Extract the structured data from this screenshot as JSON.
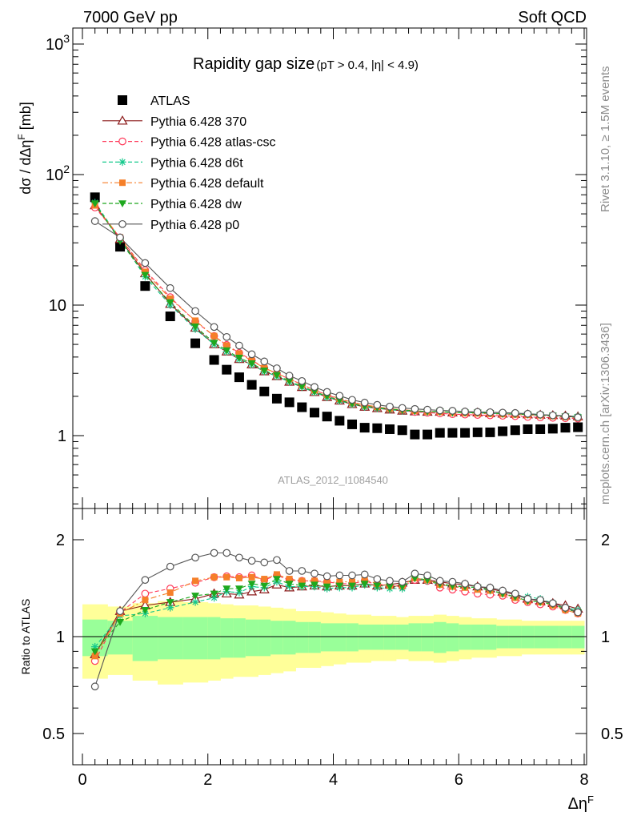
{
  "header": {
    "left": "7000 GeV pp",
    "right": "Soft QCD"
  },
  "title": {
    "main": "Rapidity gap size",
    "cuts": "(pT > 0.4, |η| < 4.9)"
  },
  "analysis_label": "ATLAS_2012_I1084540",
  "side_labels": {
    "rivet": "Rivet 3.1.10, ≥ 1.5M events",
    "mcplots": "mcplots.cern.ch [arXiv:1306.3436]"
  },
  "colors": {
    "ATLAS": "#000000",
    "p370": "#8b1a1a",
    "atlas_csc": "#ff3a5a",
    "d6t": "#14c98c",
    "default": "#f57f29",
    "dw": "#1ea81e",
    "p0": "#555555",
    "band_inner": "#99ff99",
    "band_outer": "#ffff99"
  },
  "chart_data": [
    {
      "type": "scatter",
      "panel": "main",
      "ylabel": "dσ / dΔη^F [mb]",
      "yscale": "log",
      "ylim": [
        0.3,
        1200
      ],
      "xlim": [
        -0.3,
        8.1
      ],
      "yticks": [
        1,
        10,
        100,
        1000
      ],
      "ytick_labels": [
        "1",
        "10",
        "10^2",
        "10^3"
      ],
      "x": [
        0.2,
        0.6,
        1.0,
        1.4,
        1.8,
        2.1,
        2.3,
        2.5,
        2.7,
        2.9,
        3.1,
        3.3,
        3.5,
        3.7,
        3.9,
        4.1,
        4.3,
        4.5,
        4.7,
        4.9,
        5.1,
        5.3,
        5.5,
        5.7,
        5.9,
        6.1,
        6.3,
        6.5,
        6.7,
        6.9,
        7.1,
        7.3,
        7.5,
        7.7,
        7.9
      ],
      "legend_placement": "top-left",
      "series": [
        {
          "name": "ATLAS",
          "key": "ATLAS",
          "marker": "square",
          "line": "none",
          "values": [
            67,
            28,
            14,
            8.2,
            5.1,
            3.8,
            3.2,
            2.8,
            2.45,
            2.18,
            1.92,
            1.8,
            1.65,
            1.5,
            1.4,
            1.3,
            1.22,
            1.15,
            1.14,
            1.12,
            1.1,
            1.02,
            1.02,
            1.05,
            1.05,
            1.05,
            1.06,
            1.06,
            1.08,
            1.1,
            1.12,
            1.12,
            1.13,
            1.15,
            1.16
          ]
        },
        {
          "name": "Pythia 6.428 370",
          "key": "p370",
          "marker": "triangle-open",
          "line": "solid",
          "values": [
            58,
            32,
            17.5,
            10.2,
            6.7,
            5.0,
            4.4,
            3.85,
            3.5,
            3.1,
            2.85,
            2.58,
            2.35,
            2.15,
            1.97,
            1.85,
            1.74,
            1.66,
            1.62,
            1.58,
            1.55,
            1.53,
            1.52,
            1.52,
            1.5,
            1.5,
            1.5,
            1.48,
            1.47,
            1.46,
            1.45,
            1.44,
            1.43,
            1.42,
            1.4
          ]
        },
        {
          "name": "Pythia 6.428 atlas-csc",
          "key": "atlas_csc",
          "marker": "circle-open",
          "line": "dashed",
          "values": [
            56,
            33,
            18.5,
            11.5,
            7.5,
            5.8,
            4.95,
            4.3,
            3.8,
            3.3,
            2.98,
            2.72,
            2.46,
            2.23,
            2.05,
            1.9,
            1.78,
            1.71,
            1.65,
            1.61,
            1.57,
            1.52,
            1.5,
            1.48,
            1.46,
            1.45,
            1.44,
            1.43,
            1.42,
            1.41,
            1.39,
            1.38,
            1.37,
            1.36,
            1.35
          ]
        },
        {
          "name": "Pythia 6.428 d6t",
          "key": "d6t",
          "marker": "star",
          "line": "dashed",
          "values": [
            61,
            32,
            16.5,
            10,
            6.55,
            5.0,
            4.4,
            3.85,
            3.5,
            3.1,
            2.85,
            2.58,
            2.35,
            2.15,
            1.97,
            1.85,
            1.74,
            1.66,
            1.62,
            1.58,
            1.55,
            1.54,
            1.52,
            1.52,
            1.5,
            1.5,
            1.5,
            1.48,
            1.47,
            1.46,
            1.47,
            1.45,
            1.43,
            1.41,
            1.4
          ]
        },
        {
          "name": "Pythia 6.428 default",
          "key": "default",
          "marker": "square-small",
          "line": "dashdot",
          "values": [
            58,
            33,
            18,
            11.2,
            7.6,
            5.8,
            4.9,
            4.25,
            3.75,
            3.3,
            3.0,
            2.72,
            2.46,
            2.23,
            2.06,
            1.92,
            1.8,
            1.72,
            1.66,
            1.61,
            1.58,
            1.55,
            1.53,
            1.52,
            1.5,
            1.49,
            1.48,
            1.47,
            1.46,
            1.45,
            1.44,
            1.43,
            1.41,
            1.39,
            1.37
          ]
        },
        {
          "name": "Pythia 6.428 dw",
          "key": "dw",
          "marker": "triangle-down",
          "line": "dashed",
          "values": [
            60,
            31,
            17,
            10.5,
            6.85,
            5.15,
            4.5,
            3.95,
            3.58,
            3.15,
            2.9,
            2.62,
            2.38,
            2.18,
            2.0,
            1.87,
            1.76,
            1.68,
            1.64,
            1.6,
            1.57,
            1.55,
            1.53,
            1.53,
            1.51,
            1.5,
            1.5,
            1.49,
            1.47,
            1.46,
            1.45,
            1.43,
            1.42,
            1.4,
            1.38
          ]
        },
        {
          "name": "Pythia 6.428 p0",
          "key": "p0",
          "marker": "circle-open",
          "line": "solid",
          "values": [
            44,
            33,
            21,
            13.5,
            9.0,
            6.8,
            5.7,
            4.9,
            4.2,
            3.7,
            3.28,
            2.88,
            2.62,
            2.36,
            2.16,
            2.02,
            1.88,
            1.79,
            1.72,
            1.67,
            1.63,
            1.6,
            1.58,
            1.56,
            1.55,
            1.53,
            1.52,
            1.51,
            1.5,
            1.49,
            1.47,
            1.45,
            1.43,
            1.41,
            1.38
          ]
        }
      ]
    },
    {
      "type": "scatter",
      "panel": "ratio",
      "ylabel": "Ratio to ATLAS",
      "xlabel": "Δη^F",
      "yscale": "log",
      "ylim": [
        0.4,
        2.4
      ],
      "xlim": [
        -0.3,
        8.1
      ],
      "yticks": [
        0.5,
        1,
        2
      ],
      "ytick_labels": [
        "0.5",
        "1",
        "2"
      ],
      "xticks": [
        0,
        2,
        4,
        6,
        8
      ],
      "bands": {
        "x_edges": [
          0.0,
          0.4,
          0.8,
          1.2,
          1.6,
          2.0,
          2.2,
          2.4,
          2.6,
          2.8,
          3.0,
          3.2,
          3.4,
          3.6,
          3.8,
          4.0,
          4.2,
          4.4,
          4.6,
          4.8,
          5.0,
          5.2,
          5.4,
          5.6,
          5.8,
          6.0,
          6.2,
          6.4,
          6.6,
          6.8,
          7.0,
          7.2,
          7.4,
          7.6,
          7.8,
          8.0
        ],
        "inner_half_width": [
          0.13,
          0.12,
          0.16,
          0.15,
          0.15,
          0.15,
          0.14,
          0.14,
          0.13,
          0.13,
          0.12,
          0.12,
          0.11,
          0.11,
          0.1,
          0.1,
          0.1,
          0.09,
          0.09,
          0.09,
          0.09,
          0.1,
          0.1,
          0.11,
          0.1,
          0.09,
          0.09,
          0.09,
          0.08,
          0.08,
          0.08,
          0.08,
          0.08,
          0.08,
          0.08
        ],
        "outer_half_width": [
          0.26,
          0.24,
          0.27,
          0.29,
          0.28,
          0.27,
          0.26,
          0.25,
          0.25,
          0.24,
          0.23,
          0.22,
          0.2,
          0.2,
          0.19,
          0.18,
          0.17,
          0.17,
          0.16,
          0.16,
          0.15,
          0.16,
          0.16,
          0.17,
          0.16,
          0.15,
          0.14,
          0.14,
          0.13,
          0.13,
          0.12,
          0.12,
          0.12,
          0.12,
          0.12
        ]
      },
      "x": [
        0.2,
        0.6,
        1.0,
        1.4,
        1.8,
        2.1,
        2.3,
        2.5,
        2.7,
        2.9,
        3.1,
        3.3,
        3.5,
        3.7,
        3.9,
        4.1,
        4.3,
        4.5,
        4.7,
        4.9,
        5.1,
        5.3,
        5.5,
        5.7,
        5.9,
        6.1,
        6.3,
        6.5,
        6.7,
        6.9,
        7.1,
        7.3,
        7.5,
        7.7,
        7.9
      ],
      "series": [
        {
          "name": "Pythia 6.428 370",
          "key": "p370",
          "marker": "triangle-open",
          "line": "solid",
          "values": [
            0.88,
            1.2,
            1.25,
            1.28,
            1.31,
            1.36,
            1.36,
            1.35,
            1.38,
            1.4,
            1.45,
            1.42,
            1.43,
            1.44,
            1.43,
            1.44,
            1.44,
            1.46,
            1.44,
            1.45,
            1.47,
            1.5,
            1.5,
            1.48,
            1.46,
            1.45,
            1.43,
            1.41,
            1.38,
            1.35,
            1.31,
            1.29,
            1.27,
            1.25,
            1.22
          ]
        },
        {
          "name": "Pythia 6.428 atlas-csc",
          "key": "atlas_csc",
          "marker": "circle-open",
          "line": "dashed",
          "values": [
            0.84,
            1.19,
            1.36,
            1.41,
            1.47,
            1.53,
            1.54,
            1.53,
            1.55,
            1.5,
            1.55,
            1.5,
            1.49,
            1.49,
            1.48,
            1.46,
            1.46,
            1.49,
            1.45,
            1.44,
            1.43,
            1.5,
            1.49,
            1.42,
            1.4,
            1.38,
            1.36,
            1.35,
            1.34,
            1.3,
            1.28,
            1.26,
            1.24,
            1.21,
            1.18
          ]
        },
        {
          "name": "Pythia 6.428 d6t",
          "key": "d6t",
          "marker": "star",
          "line": "dashed",
          "values": [
            0.93,
            1.16,
            1.18,
            1.23,
            1.28,
            1.32,
            1.38,
            1.37,
            1.43,
            1.42,
            1.48,
            1.43,
            1.43,
            1.43,
            1.41,
            1.42,
            1.42,
            1.45,
            1.42,
            1.41,
            1.41,
            1.52,
            1.49,
            1.45,
            1.43,
            1.43,
            1.42,
            1.39,
            1.36,
            1.33,
            1.33,
            1.31,
            1.27,
            1.23,
            1.21
          ]
        },
        {
          "name": "Pythia 6.428 default",
          "key": "default",
          "marker": "square-small",
          "line": "dashdot",
          "values": [
            0.87,
            1.18,
            1.3,
            1.37,
            1.49,
            1.53,
            1.53,
            1.52,
            1.53,
            1.51,
            1.56,
            1.51,
            1.49,
            1.49,
            1.47,
            1.48,
            1.48,
            1.5,
            1.46,
            1.44,
            1.44,
            1.52,
            1.5,
            1.45,
            1.43,
            1.42,
            1.4,
            1.39,
            1.36,
            1.32,
            1.29,
            1.28,
            1.25,
            1.21,
            1.18
          ]
        },
        {
          "name": "Pythia 6.428 dw",
          "key": "dw",
          "marker": "triangle-down",
          "line": "dashed",
          "values": [
            0.9,
            1.11,
            1.21,
            1.28,
            1.34,
            1.36,
            1.41,
            1.41,
            1.46,
            1.44,
            1.51,
            1.46,
            1.44,
            1.45,
            1.43,
            1.44,
            1.44,
            1.46,
            1.44,
            1.43,
            1.43,
            1.52,
            1.5,
            1.46,
            1.44,
            1.43,
            1.42,
            1.4,
            1.36,
            1.33,
            1.29,
            1.28,
            1.26,
            1.22,
            1.19
          ]
        },
        {
          "name": "Pythia 6.428 p0",
          "key": "p0",
          "marker": "circle-open",
          "line": "solid",
          "values": [
            0.7,
            1.2,
            1.5,
            1.65,
            1.76,
            1.82,
            1.82,
            1.76,
            1.72,
            1.7,
            1.73,
            1.6,
            1.6,
            1.57,
            1.54,
            1.55,
            1.55,
            1.56,
            1.51,
            1.49,
            1.48,
            1.57,
            1.55,
            1.49,
            1.48,
            1.46,
            1.43,
            1.42,
            1.39,
            1.36,
            1.31,
            1.3,
            1.27,
            1.23,
            1.19
          ]
        }
      ]
    }
  ]
}
